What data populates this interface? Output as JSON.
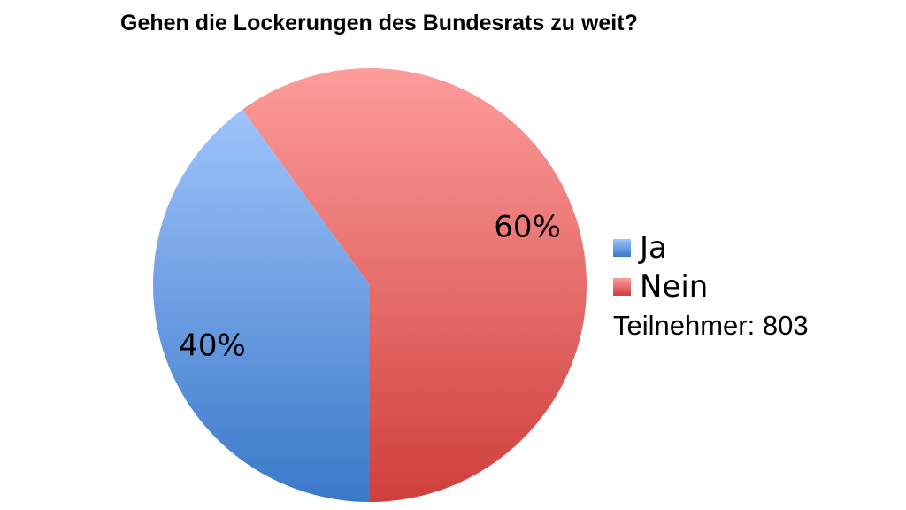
{
  "chart_data": {
    "type": "pie",
    "title": "Gehen die Lockerungen des Bundesrats zu weit?",
    "categories": [
      "Ja",
      "Nein"
    ],
    "values": [
      40,
      60
    ],
    "data_labels": [
      "40%",
      "60%"
    ],
    "colors": {
      "Ja": {
        "light": "#9fc3fb",
        "dark": "#3a79c9"
      },
      "Nein": {
        "light": "#fd9c9b",
        "dark": "#cf3f3c"
      }
    },
    "legend": {
      "placement": "right",
      "entries": [
        "Ja",
        "Nein"
      ]
    },
    "participants_text": "Teilnehmer: 803"
  }
}
